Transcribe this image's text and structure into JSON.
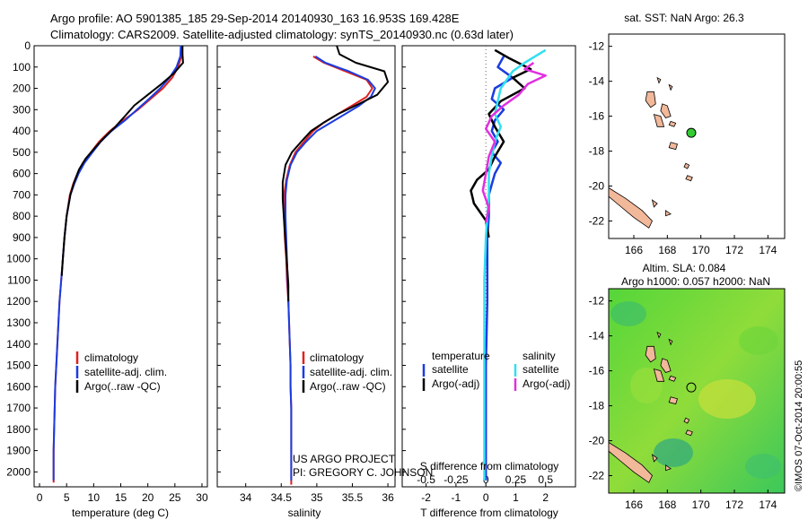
{
  "header": {
    "line1": "Argo profile: AO 5901385_185 29-Sep-2014 20140930_163 16.953S 169.428E",
    "line2": "Climatology: CARS2009. Satellite-adjusted climatology: synTS_20140930.nc (0.63d later)"
  },
  "credit": {
    "line1": "US ARGO PROJECT",
    "line2": "PI: GREGORY C. JOHNSON"
  },
  "side_stamp": "©IMOS 07-Oct-2014 20:00:55",
  "colors": {
    "climatology": "#e02020",
    "satellite": "#1a3de0",
    "argo": "#000000",
    "satellite_s": "#30e0f0",
    "argo_s": "#e030e0",
    "land": "#f2b89a",
    "argo_marker": "#33cc33"
  },
  "chart_data": [
    {
      "type": "line",
      "xlabel": "temperature (deg C)",
      "ylabel": "",
      "xlim": [
        -1,
        31
      ],
      "ylim": [
        2070,
        0
      ],
      "xticks": [
        "0",
        "5",
        "10",
        "15",
        "20",
        "25",
        "30"
      ],
      "yticks": [
        "0",
        "100",
        "200",
        "300",
        "400",
        "500",
        "600",
        "700",
        "800",
        "900",
        "1000",
        "1100",
        "1200",
        "1300",
        "1400",
        "1500",
        "1600",
        "1700",
        "1800",
        "1900",
        "2000"
      ],
      "legend": [
        "climatology",
        "satellite-adj. clim.",
        "Argo(..raw -QC)"
      ],
      "legend_position": "lower-right",
      "series": [
        {
          "name": "climatology",
          "x": [
            26.3,
            26.2,
            25.6,
            24.5,
            22.8,
            20.5,
            18.2,
            15.5,
            13.0,
            11.0,
            9.5,
            8.0,
            7.0,
            6.2,
            5.6,
            5.0,
            4.6,
            4.3,
            4.0,
            3.7,
            3.5,
            3.3,
            3.1,
            2.9,
            2.8,
            2.7,
            2.6,
            2.6
          ],
          "y": [
            0,
            50,
            100,
            150,
            200,
            250,
            300,
            350,
            400,
            450,
            500,
            550,
            600,
            650,
            700,
            800,
            900,
            1000,
            1100,
            1200,
            1300,
            1400,
            1500,
            1600,
            1700,
            1800,
            1900,
            2050
          ]
        },
        {
          "name": "satellite-adj. clim.",
          "x": [
            26.1,
            26.0,
            25.3,
            24.0,
            22.3,
            20.2,
            18.0,
            15.8,
            13.3,
            11.3,
            9.8,
            8.3,
            7.2,
            6.4,
            5.7,
            5.0,
            4.6,
            4.3,
            4.0,
            3.7,
            3.5,
            3.3,
            3.1,
            2.9,
            2.8,
            2.7,
            2.6,
            2.6
          ],
          "y": [
            0,
            50,
            100,
            150,
            200,
            250,
            300,
            350,
            400,
            450,
            500,
            550,
            600,
            650,
            700,
            800,
            900,
            1000,
            1100,
            1200,
            1300,
            1400,
            1500,
            1600,
            1700,
            1800,
            1900,
            2040
          ]
        },
        {
          "name": "Argo(..raw -QC)",
          "x": [
            26.4,
            26.4,
            26.5,
            24.8,
            22.5,
            20.0,
            17.5,
            15.8,
            14.0,
            12.0,
            10.2,
            8.5,
            7.3,
            6.4,
            5.7,
            5.0,
            4.6,
            4.3,
            4.1
          ],
          "y": [
            0,
            40,
            80,
            130,
            180,
            230,
            280,
            330,
            380,
            430,
            480,
            530,
            580,
            640,
            700,
            800,
            900,
            1000,
            1080
          ]
        }
      ]
    },
    {
      "type": "line",
      "xlabel": "salinity",
      "ylabel": "",
      "xlim": [
        33.6,
        36.1
      ],
      "ylim": [
        2070,
        0
      ],
      "xticks": [
        "34",
        "34.5",
        "35",
        "35.5",
        "36"
      ],
      "legend": [
        "climatology",
        "satellite-adj. clim.",
        "Argo(..raw -QC)"
      ],
      "legend_position": "lower-right",
      "series": [
        {
          "name": "climatology",
          "x": [
            34.95,
            35.1,
            35.4,
            35.7,
            35.78,
            35.7,
            35.5,
            35.3,
            35.1,
            34.95,
            34.82,
            34.7,
            34.62,
            34.57,
            34.54,
            34.54,
            34.55,
            34.57,
            34.58,
            34.6,
            34.61,
            34.62,
            34.63,
            34.63,
            34.64,
            34.64,
            34.64,
            34.64
          ],
          "y": [
            50,
            80,
            120,
            160,
            200,
            240,
            280,
            320,
            360,
            400,
            450,
            500,
            560,
            630,
            700,
            800,
            900,
            1000,
            1100,
            1200,
            1300,
            1400,
            1500,
            1600,
            1700,
            1800,
            1900,
            2060
          ]
        },
        {
          "name": "satellite-adj. clim.",
          "x": [
            34.98,
            35.12,
            35.45,
            35.72,
            35.82,
            35.76,
            35.6,
            35.4,
            35.2,
            35.0,
            34.85,
            34.72,
            34.63,
            34.58,
            34.56,
            34.56,
            34.57,
            34.58,
            34.59,
            34.6,
            34.61,
            34.62,
            34.63,
            34.63,
            34.64,
            34.64,
            34.64,
            34.64
          ],
          "y": [
            50,
            80,
            120,
            160,
            200,
            240,
            280,
            320,
            360,
            400,
            450,
            500,
            560,
            630,
            700,
            800,
            900,
            1000,
            1100,
            1200,
            1300,
            1400,
            1500,
            1600,
            1700,
            1800,
            1900,
            2040
          ]
        },
        {
          "name": "Argo(..raw -QC)",
          "x": [
            35.28,
            35.32,
            35.55,
            35.95,
            36.0,
            35.85,
            35.55,
            35.3,
            35.1,
            34.92,
            34.78,
            34.65,
            34.56,
            34.52,
            34.52,
            34.54,
            34.56,
            34.58,
            34.6,
            34.6
          ],
          "y": [
            0,
            40,
            80,
            120,
            170,
            230,
            280,
            320,
            360,
            400,
            450,
            500,
            560,
            640,
            720,
            820,
            920,
            1020,
            1120,
            1200
          ]
        }
      ]
    },
    {
      "type": "line",
      "xlabel": "T difference from climatology",
      "xlabel_top": "S difference from climatology",
      "ylabel": "",
      "xlim": [
        -2.8,
        3.0
      ],
      "ylim": [
        2070,
        0
      ],
      "xticks": [
        "-2",
        "-1",
        "0",
        "1",
        "2"
      ],
      "xticks_top": [
        "-0.5",
        "-0.25",
        "0",
        "0.25",
        "0.5"
      ],
      "legend_titles": [
        "temperature",
        "salinity"
      ],
      "legend": [
        "satellite",
        "Argo(-adj)",
        "satellite",
        "Argo(-adj)"
      ],
      "legend_position": "lower-center",
      "series": [
        {
          "name": "satellite",
          "x": [
            0.6,
            0.4,
            0.9,
            0.3,
            0.2,
            0.6,
            0.3,
            0.2,
            0.4,
            0.2,
            0.5,
            0.3,
            0.2,
            0.1,
            0.1,
            0.05,
            0.05,
            0.05,
            0.0,
            0.0,
            0.0
          ],
          "y": [
            50,
            100,
            150,
            200,
            250,
            300,
            350,
            400,
            450,
            500,
            550,
            600,
            650,
            700,
            800,
            900,
            1000,
            1200,
            1500,
            1800,
            2040
          ]
        },
        {
          "name": "Argo(-adj)",
          "x": [
            0.3,
            0.8,
            1.5,
            0.9,
            1.3,
            0.5,
            0.1,
            0.3,
            0.6,
            0.3,
            0.1,
            -0.3,
            -0.5,
            -0.4,
            0.0,
            0.1
          ],
          "y": [
            20,
            60,
            110,
            150,
            200,
            260,
            320,
            380,
            450,
            520,
            580,
            630,
            680,
            740,
            820,
            900
          ]
        },
        {
          "name": "satellite",
          "x": [
            2.0,
            1.3,
            0.9,
            0.7,
            0.5,
            0.4,
            0.3,
            0.5,
            0.3,
            0.2,
            0.1,
            0.1,
            0.05,
            0.0,
            -0.05,
            -0.05,
            -0.05,
            -0.05
          ],
          "y": [
            20,
            80,
            120,
            160,
            200,
            260,
            320,
            380,
            450,
            520,
            600,
            700,
            800,
            900,
            1100,
            1400,
            1700,
            2040
          ]
        },
        {
          "name": "Argo(-adj)",
          "x": [
            1.6,
            1.3,
            2.0,
            1.4,
            1.1,
            0.6,
            0.2,
            0.0,
            0.3,
            0.1,
            0.0,
            -0.1,
            0.1,
            0.0
          ],
          "y": [
            80,
            110,
            140,
            180,
            230,
            280,
            330,
            390,
            450,
            520,
            600,
            680,
            760,
            830
          ]
        }
      ]
    },
    {
      "type": "scatter",
      "title": "sat. SST: NaN Argo: 26.3",
      "xlim": [
        164.5,
        175
      ],
      "ylim": [
        -23,
        -11.3
      ],
      "xticks": [
        "166",
        "168",
        "170",
        "172",
        "174"
      ],
      "yticks": [
        "-12",
        "-14",
        "-16",
        "-18",
        "-20",
        "-22"
      ],
      "x": [
        169.428
      ],
      "y": [
        -16.953
      ]
    },
    {
      "type": "heatmap",
      "title": "Altim. SLA: 0.084",
      "subtitle": "Argo h1000: 0.057 h2000: NaN",
      "xlim": [
        164.5,
        175
      ],
      "ylim": [
        -23,
        -11.3
      ],
      "xticks": [
        "166",
        "168",
        "170",
        "172",
        "174"
      ],
      "yticks": [
        "-12",
        "-14",
        "-16",
        "-18",
        "-20",
        "-22"
      ],
      "x": [
        169.428
      ],
      "y": [
        -16.953
      ]
    }
  ]
}
